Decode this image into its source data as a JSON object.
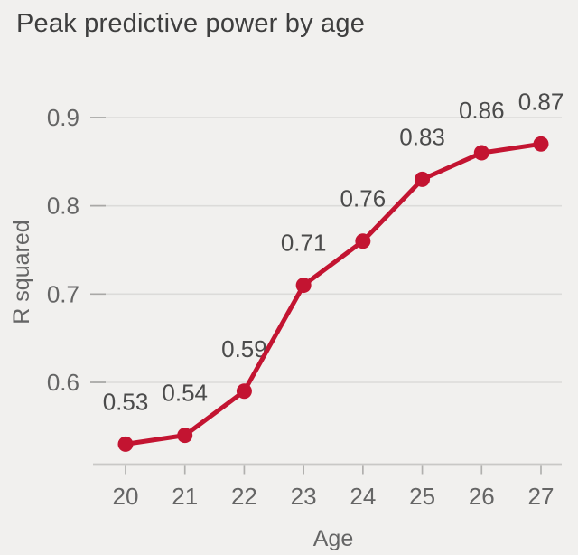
{
  "header": {
    "title": "Peak predictive power by age"
  },
  "colors": {
    "background": "#f1f0ee",
    "grid": "#dcdbd9",
    "axis_line": "#c9c8c6",
    "tick": "#a9a8a6",
    "line": "#c31431",
    "title_text": "#3e3e3e",
    "tick_label_text": "#656565",
    "data_label_text": "#4b4b4b"
  },
  "chart_data": {
    "type": "line",
    "title": "Peak predictive power by age",
    "xlabel": "Age",
    "ylabel": "R squared",
    "x": [
      20,
      21,
      22,
      23,
      24,
      25,
      26,
      27
    ],
    "values": [
      0.53,
      0.54,
      0.59,
      0.71,
      0.76,
      0.83,
      0.86,
      0.87
    ],
    "data_labels": [
      "0.53",
      "0.54",
      "0.59",
      "0.71",
      "0.76",
      "0.83",
      "0.86",
      "0.87"
    ],
    "x_tick_labels": [
      "20",
      "21",
      "22",
      "23",
      "24",
      "25",
      "26",
      "27"
    ],
    "y_ticks": [
      0.6,
      0.7,
      0.8,
      0.9
    ],
    "y_tick_labels": [
      "0.6",
      "0.7",
      "0.8",
      "0.9"
    ],
    "xlim": [
      20,
      27
    ],
    "ylim": [
      0.51,
      0.95
    ],
    "grid": "horizontal gridlines only",
    "legend": "none",
    "line_color": "#c31431",
    "marker": "circle"
  }
}
